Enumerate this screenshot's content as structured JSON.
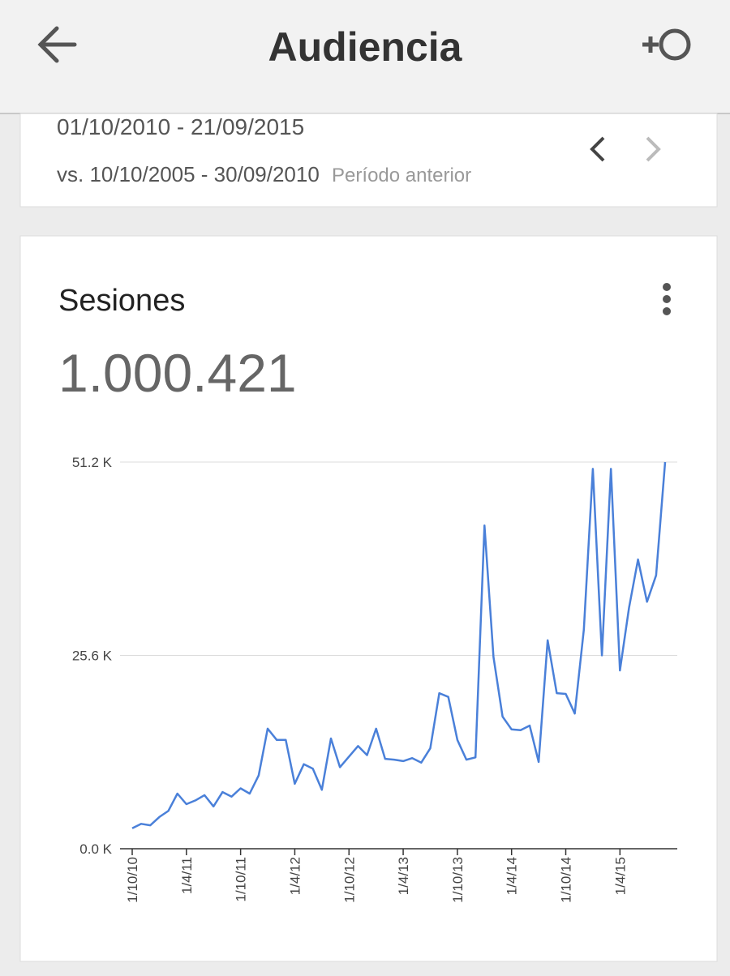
{
  "header": {
    "title": "Audiencia"
  },
  "date_range": {
    "current": "01/10/2010 - 21/09/2015",
    "comparison": "vs. 10/10/2005 - 30/09/2010",
    "comparison_label": "Período anterior"
  },
  "card": {
    "title": "Sesiones",
    "total": "1.000.421"
  },
  "chart_data": {
    "type": "line",
    "color": "#4a80d9",
    "grid": true,
    "categories": [
      "1/10/10",
      null,
      null,
      null,
      null,
      null,
      "1/4/11",
      null,
      null,
      null,
      null,
      null,
      "1/10/11",
      null,
      null,
      null,
      null,
      null,
      "1/4/12",
      null,
      null,
      null,
      null,
      null,
      "1/10/12",
      null,
      null,
      null,
      null,
      null,
      "1/4/13",
      null,
      null,
      null,
      null,
      null,
      "1/10/13",
      null,
      null,
      null,
      null,
      null,
      "1/4/14",
      null,
      null,
      null,
      null,
      null,
      "1/10/14",
      null,
      null,
      null,
      null,
      null,
      "1/4/15",
      null,
      null,
      null,
      null,
      null
    ],
    "values": [
      2.7,
      3.3,
      3.1,
      4.2,
      5.0,
      7.3,
      5.9,
      6.4,
      7.1,
      5.6,
      7.5,
      6.9,
      8.0,
      7.3,
      9.7,
      15.9,
      14.4,
      14.4,
      8.6,
      11.2,
      10.6,
      7.8,
      14.6,
      10.8,
      12.2,
      13.6,
      12.4,
      15.9,
      11.9,
      11.8,
      11.6,
      12.0,
      11.4,
      13.3,
      20.6,
      20.1,
      14.4,
      11.8,
      12.1,
      42.8,
      25.4,
      17.5,
      15.8,
      15.7,
      16.3,
      11.5,
      27.6,
      20.6,
      20.5,
      17.9,
      29.0,
      50.3,
      25.6,
      50.3,
      23.6,
      31.9,
      38.3,
      32.7,
      36.2,
      51.2
    ],
    "ylim": [
      0,
      51.2
    ],
    "yticks": [
      {
        "value": 0,
        "label": "0.0 K"
      },
      {
        "value": 25.6,
        "label": "25.6 K"
      },
      {
        "value": 51.2,
        "label": "51.2 K"
      }
    ]
  }
}
